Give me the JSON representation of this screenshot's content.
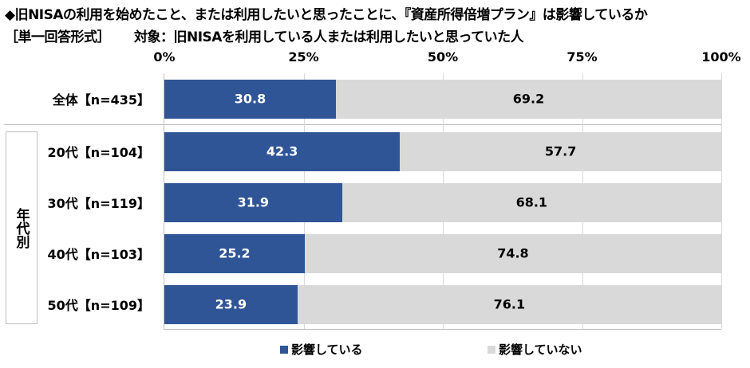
{
  "title": "◆旧NISAの利用を始めたこと、または利用したいと思ったことに、『資産所得倍増プラン』は影響しているか",
  "subtitle_format": "［単一回答形式］",
  "subtitle_target": "対象：旧NISAを利用している人または利用したいと思っていた人",
  "colors": {
    "series1": "#2F5597",
    "series2": "#D9D9D9"
  },
  "chart_data": {
    "type": "bar",
    "orientation": "horizontal",
    "stacked": true,
    "categories": [
      "全体【n=435】",
      "20代【n=104】",
      "30代【n=119】",
      "40代【n=103】",
      "50代【n=109】"
    ],
    "group_label": "年代別",
    "series": [
      {
        "name": "影響している",
        "values": [
          30.8,
          42.3,
          31.9,
          25.2,
          23.9
        ]
      },
      {
        "name": "影響していない",
        "values": [
          69.2,
          57.7,
          68.1,
          74.8,
          76.1
        ]
      }
    ],
    "xticks": [
      "0%",
      "25%",
      "50%",
      "75%",
      "100%"
    ],
    "xlim": [
      0,
      100
    ],
    "legend": "bottom"
  }
}
